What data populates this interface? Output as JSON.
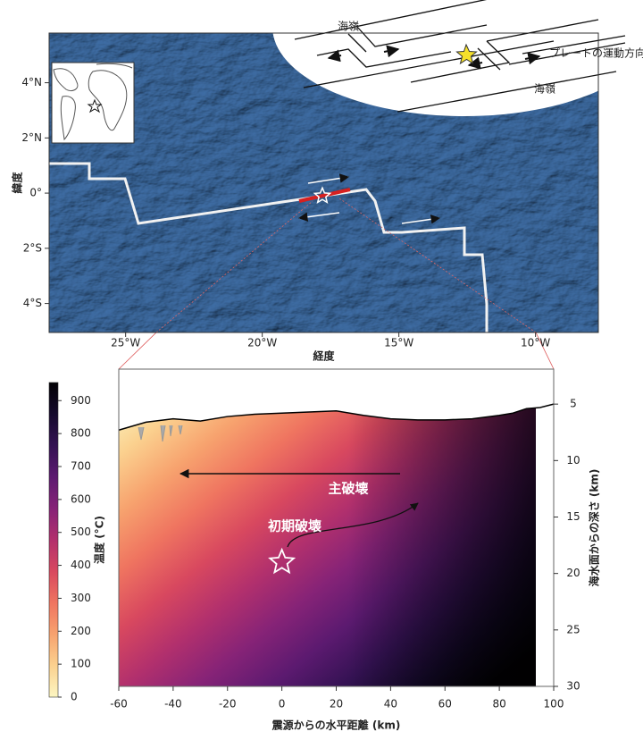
{
  "chart_data": [
    {
      "type": "map",
      "x_label": "経度",
      "y_label": "緯度",
      "xlim": [
        -27.8,
        -7.7
      ],
      "ylim": [
        -5.05,
        5.8
      ],
      "xticks": [
        {
          "value": -25,
          "label": "25°W"
        },
        {
          "value": -20,
          "label": "20°W"
        },
        {
          "value": -15,
          "label": "15°W"
        },
        {
          "value": -10,
          "label": "10°W"
        }
      ],
      "yticks": [
        {
          "value": -4,
          "label": "4°S"
        },
        {
          "value": -2,
          "label": "2°S"
        },
        {
          "value": 0,
          "label": "0°"
        },
        {
          "value": 2,
          "label": "2°N"
        },
        {
          "value": 4,
          "label": "4°N"
        }
      ],
      "epicenter": {
        "x": -17.8,
        "y": -0.1
      }
    },
    {
      "type": "section",
      "x_label": "震源からの水平距離 (km)",
      "y_label": "海水面からの深さ (km)",
      "xlim": [
        -60,
        100
      ],
      "ylim": [
        30,
        1.9
      ],
      "xticks": [
        -60,
        -40,
        -20,
        0,
        20,
        40,
        60,
        80,
        100
      ],
      "yticks": [
        5,
        10,
        15,
        20,
        25,
        30
      ],
      "seafloor": {
        "x": [
          -60,
          -50,
          -40,
          -30,
          -20,
          -10,
          0,
          10,
          20,
          30,
          40,
          50,
          60,
          70,
          80,
          85,
          90,
          95,
          100
        ],
        "y": [
          7.3,
          6.6,
          6.3,
          6.5,
          6.1,
          5.9,
          5.8,
          5.7,
          5.6,
          6.0,
          6.3,
          6.4,
          6.4,
          6.3,
          6.0,
          5.8,
          5.4,
          5.3,
          5.0
        ],
        "color": "#000000"
      },
      "hypocenter": {
        "x": 0,
        "y": 19
      },
      "annotations": [
        "主破壊",
        "初期破壊"
      ]
    },
    {
      "type": "colorbar",
      "title": "温度 (°C)",
      "lim": [
        0,
        955
      ],
      "ticks": [
        0,
        100,
        200,
        300,
        400,
        500,
        600,
        700,
        800,
        900
      ],
      "colors": [
        "#fcf6c2",
        "#fbd18f",
        "#f7a26e",
        "#ef7460",
        "#d8485f",
        "#b2306d",
        "#862377",
        "#5c1a70",
        "#341253",
        "#150a2c",
        "#020104"
      ]
    }
  ],
  "schematic": {
    "labels": [
      "海嶺",
      "プレートの運動方向",
      "海嶺"
    ]
  }
}
